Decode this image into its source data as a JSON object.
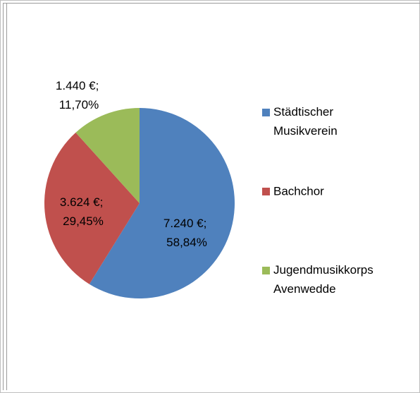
{
  "chart_data": {
    "type": "pie",
    "categories": [
      "Städtischer Musikverein",
      "Bachchor",
      "Jugendmusikkorps Avenwedde"
    ],
    "values": [
      7240,
      3624,
      1440
    ],
    "value_labels": [
      "7.240 €; 58,84%",
      "3.624 €; 29,45%",
      "1.440 €; 11,70%"
    ],
    "colors": [
      "#4f81bd",
      "#c0504d",
      "#9bbb59"
    ],
    "legend": "right"
  }
}
